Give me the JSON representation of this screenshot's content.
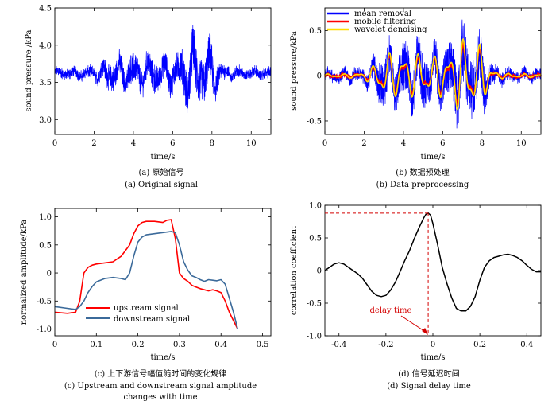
{
  "chart_data": [
    {
      "panel": "a",
      "type": "line",
      "xlabel": "time/s",
      "ylabel": "sound pressure /kPa",
      "xlim": [
        0,
        11
      ],
      "ylim": [
        2.8,
        4.5
      ],
      "xticks": [
        0,
        2,
        4,
        6,
        8,
        10
      ],
      "yticks": [
        "3.0",
        "3.5",
        "4.0",
        "4.5"
      ],
      "caption_cn": "(a)  原始信号",
      "caption_en": "(a)  Original signal",
      "series": [
        {
          "color": "#0000ff",
          "envelope_t": [
            0,
            1,
            2,
            2.5,
            3,
            3.5,
            4,
            4.5,
            5,
            5.5,
            6,
            6.5,
            7,
            7.5,
            8,
            8.5,
            9,
            10,
            11
          ],
          "envelope_amp": [
            0.07,
            0.07,
            0.1,
            0.2,
            0.3,
            0.24,
            0.34,
            0.26,
            0.36,
            0.24,
            0.3,
            0.4,
            0.62,
            0.5,
            0.44,
            0.16,
            0.09,
            0.07,
            0.07
          ],
          "baseline": 3.62
        }
      ]
    },
    {
      "panel": "b",
      "type": "line",
      "xlabel": "time/s",
      "ylabel": "sound pressure/kPa",
      "xlim": [
        0,
        11
      ],
      "ylim": [
        -0.65,
        0.75
      ],
      "xticks": [
        0,
        2,
        4,
        6,
        8,
        10
      ],
      "yticks": [
        "-0.5",
        "0",
        "0.5"
      ],
      "legend_position": "top-left",
      "caption_cn": "(b)  数据预处理",
      "caption_en": "(b)  Data preprocessing",
      "series": [
        {
          "name": "mean removal",
          "color": "#0000ff"
        },
        {
          "name": "mobile filtering",
          "color": "#ff0000"
        },
        {
          "name": "wavelet denoising",
          "color": "#ffdd00"
        }
      ],
      "envelope_t": [
        0,
        1,
        2,
        2.5,
        3,
        3.5,
        4,
        4.5,
        5,
        5.5,
        6,
        6.5,
        7,
        7.5,
        8,
        8.5,
        9,
        10,
        11
      ],
      "envelope_amp": [
        0.07,
        0.07,
        0.1,
        0.22,
        0.42,
        0.32,
        0.5,
        0.36,
        0.45,
        0.32,
        0.42,
        0.46,
        0.62,
        0.56,
        0.45,
        0.17,
        0.09,
        0.07,
        0.07
      ],
      "smooth_amp": [
        0.02,
        0.02,
        0.04,
        0.12,
        0.3,
        0.22,
        0.3,
        0.22,
        0.28,
        0.2,
        0.26,
        0.3,
        0.42,
        0.46,
        0.3,
        0.08,
        0.03,
        0.02,
        0.02
      ]
    },
    {
      "panel": "c",
      "type": "line",
      "xlabel": "time/s",
      "ylabel": "normalized amplitude/kPa",
      "xlim": [
        0,
        0.52
      ],
      "ylim": [
        -1.12,
        1.15
      ],
      "xticks": [
        "0",
        "0.1",
        "0.2",
        "0.3",
        "0.4",
        "0.5"
      ],
      "yticks": [
        "-1.0",
        "-0.5",
        "0",
        "0.5",
        "1.0"
      ],
      "legend_position": "bottom-left",
      "caption_cn": "(c)  上下游信号幅值随时间的变化规律",
      "caption_en_1": "(c)  Upstream and downstream signal amplitude",
      "caption_en_2": "changes with time",
      "series": [
        {
          "name": "upstream signal",
          "color": "#ff0000",
          "x": [
            0,
            0.03,
            0.05,
            0.06,
            0.07,
            0.08,
            0.09,
            0.1,
            0.12,
            0.14,
            0.16,
            0.17,
            0.18,
            0.19,
            0.2,
            0.21,
            0.22,
            0.24,
            0.26,
            0.27,
            0.28,
            0.29,
            0.3,
            0.31,
            0.32,
            0.33,
            0.34,
            0.35,
            0.36,
            0.37,
            0.38,
            0.39,
            0.4,
            0.41,
            0.42,
            0.43,
            0.44
          ],
          "y": [
            -0.7,
            -0.72,
            -0.7,
            -0.5,
            0.0,
            0.1,
            0.14,
            0.16,
            0.18,
            0.2,
            0.3,
            0.4,
            0.5,
            0.7,
            0.84,
            0.9,
            0.92,
            0.92,
            0.9,
            0.94,
            0.95,
            0.62,
            0.0,
            -0.1,
            -0.15,
            -0.22,
            -0.25,
            -0.28,
            -0.3,
            -0.32,
            -0.3,
            -0.32,
            -0.35,
            -0.5,
            -0.7,
            -0.85,
            -1.0
          ]
        },
        {
          "name": "downstream signal",
          "color": "#3b6a9a",
          "x": [
            0,
            0.03,
            0.05,
            0.06,
            0.07,
            0.08,
            0.09,
            0.1,
            0.12,
            0.14,
            0.16,
            0.17,
            0.18,
            0.19,
            0.2,
            0.21,
            0.22,
            0.24,
            0.26,
            0.28,
            0.29,
            0.3,
            0.31,
            0.32,
            0.33,
            0.34,
            0.35,
            0.36,
            0.37,
            0.38,
            0.39,
            0.4,
            0.41,
            0.42,
            0.43,
            0.44
          ],
          "y": [
            -0.6,
            -0.63,
            -0.65,
            -0.6,
            -0.5,
            -0.35,
            -0.24,
            -0.16,
            -0.1,
            -0.08,
            -0.1,
            -0.12,
            0.0,
            0.3,
            0.55,
            0.64,
            0.68,
            0.7,
            0.72,
            0.74,
            0.72,
            0.5,
            0.2,
            0.05,
            -0.05,
            -0.08,
            -0.12,
            -0.15,
            -0.12,
            -0.13,
            -0.14,
            -0.12,
            -0.2,
            -0.45,
            -0.7,
            -1.0
          ]
        }
      ]
    },
    {
      "panel": "d",
      "type": "line",
      "xlabel": "time/s",
      "ylabel": "correlation coefficient",
      "xlim": [
        -0.46,
        0.46
      ],
      "ylim": [
        -1.0,
        1.0
      ],
      "xticks": [
        "-0.4",
        "-0.2",
        "0",
        "0.2",
        "0.4"
      ],
      "yticks": [
        "-1.0",
        "-0.5",
        "0",
        "0.5",
        "1.0"
      ],
      "annotation": "delay time",
      "caption_cn": "(d)  信号延迟时间",
      "caption_en": "(d)  Signal delay time",
      "peak": {
        "x": -0.02,
        "y": 0.88
      },
      "series": [
        {
          "color": "#000000",
          "x": [
            -0.46,
            -0.44,
            -0.42,
            -0.4,
            -0.38,
            -0.36,
            -0.34,
            -0.32,
            -0.3,
            -0.28,
            -0.26,
            -0.24,
            -0.22,
            -0.2,
            -0.18,
            -0.16,
            -0.14,
            -0.12,
            -0.1,
            -0.08,
            -0.06,
            -0.04,
            -0.03,
            -0.02,
            -0.01,
            0,
            0.02,
            0.04,
            0.06,
            0.08,
            0.1,
            0.12,
            0.14,
            0.16,
            0.18,
            0.2,
            0.22,
            0.24,
            0.26,
            0.28,
            0.3,
            0.32,
            0.34,
            0.36,
            0.38,
            0.4,
            0.42,
            0.44,
            0.46
          ],
          "y": [
            0.0,
            0.05,
            0.1,
            0.12,
            0.1,
            0.05,
            0.0,
            -0.05,
            -0.12,
            -0.22,
            -0.32,
            -0.38,
            -0.4,
            -0.38,
            -0.3,
            -0.18,
            -0.02,
            0.15,
            0.3,
            0.48,
            0.65,
            0.8,
            0.86,
            0.88,
            0.85,
            0.72,
            0.4,
            0.05,
            -0.2,
            -0.42,
            -0.58,
            -0.62,
            -0.62,
            -0.55,
            -0.4,
            -0.15,
            0.05,
            0.15,
            0.2,
            0.22,
            0.24,
            0.25,
            0.23,
            0.2,
            0.15,
            0.08,
            0.02,
            -0.02,
            -0.02
          ]
        }
      ]
    }
  ]
}
